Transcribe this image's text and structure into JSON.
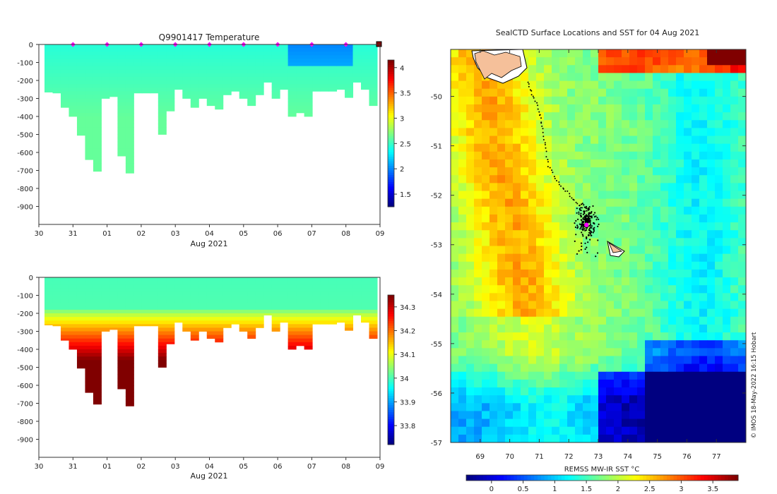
{
  "chart_data": [
    {
      "type": "heatmap",
      "title": "Q9901417  Temperature",
      "xlabel": "Aug 2021",
      "ylabel": "",
      "x_ticks": [
        "30",
        "31",
        "01",
        "02",
        "03",
        "04",
        "05",
        "06",
        "07",
        "08",
        "09"
      ],
      "y_ticks": [
        "0",
        "-100",
        "-200",
        "-300",
        "-400",
        "-500",
        "-600",
        "-700",
        "-800",
        "-900"
      ],
      "ylim": [
        -1000,
        0
      ],
      "colorbar_ticks": [
        "1.5",
        "2",
        "2.5",
        "3",
        "3.5",
        "4"
      ],
      "colorbar_range": [
        1.25,
        4.15
      ],
      "profile_markers_days": [
        1,
        2,
        3,
        4,
        5,
        6,
        7,
        8,
        9,
        10
      ],
      "profile_max_depths": [
        265,
        270,
        350,
        400,
        505,
        640,
        705,
        300,
        290,
        620,
        715,
        270,
        270,
        270,
        500,
        370,
        250,
        300,
        350,
        300,
        340,
        360,
        280,
        260,
        300,
        340,
        280,
        210,
        300,
        250,
        400,
        380,
        400,
        260,
        260,
        260,
        250,
        295,
        210,
        250,
        340
      ],
      "surface_value": 2.45,
      "deep_value": 2.7
    },
    {
      "type": "heatmap",
      "title": "",
      "xlabel": "Aug 2021",
      "ylabel": "",
      "x_ticks": [
        "30",
        "31",
        "01",
        "02",
        "03",
        "04",
        "05",
        "06",
        "07",
        "08",
        "09"
      ],
      "y_ticks": [
        "0",
        "-100",
        "-200",
        "-300",
        "-400",
        "-500",
        "-600",
        "-700",
        "-800",
        "-900"
      ],
      "ylim": [
        -1000,
        0
      ],
      "colorbar_ticks": [
        "33.8",
        "33.9",
        "34",
        "34.1",
        "34.2",
        "34.3"
      ],
      "colorbar_range": [
        33.72,
        34.35
      ],
      "profile_max_depths": [
        265,
        270,
        350,
        400,
        505,
        640,
        705,
        300,
        290,
        620,
        715,
        270,
        270,
        270,
        500,
        370,
        250,
        300,
        350,
        300,
        340,
        360,
        280,
        260,
        300,
        340,
        280,
        210,
        300,
        250,
        400,
        380,
        400,
        260,
        260,
        260,
        250,
        295,
        210,
        250,
        340
      ],
      "surface_value": 34.0,
      "deep_value": 34.35
    },
    {
      "type": "heatmap",
      "title": "SealCTD Surface Locations and SST for 04 Aug 2021",
      "xlabel": "",
      "x_ticks": [
        "69",
        "70",
        "71",
        "72",
        "73",
        "74",
        "75",
        "76",
        "77"
      ],
      "y_ticks": [
        "-50",
        "-51",
        "-52",
        "-53",
        "-54",
        "-55",
        "-56",
        "-57"
      ],
      "xlim": [
        68,
        78
      ],
      "ylim": [
        -57,
        -49.05
      ],
      "colorbar_label": "REMSS MW-IR SST °C",
      "colorbar_ticks": [
        "0",
        "0.5",
        "1",
        "1.5",
        "2",
        "2.5",
        "3",
        "3.5"
      ],
      "colorbar_range": [
        -0.4,
        3.9
      ],
      "seal_track": [
        [
          70.6,
          -49.7
        ],
        [
          70.8,
          -50.0
        ],
        [
          71.0,
          -50.3
        ],
        [
          71.1,
          -50.6
        ],
        [
          71.2,
          -51.0
        ],
        [
          71.3,
          -51.4
        ],
        [
          71.6,
          -51.7
        ],
        [
          71.9,
          -51.9
        ],
        [
          72.2,
          -52.1
        ],
        [
          72.5,
          -52.3
        ]
      ],
      "cluster_center": [
        72.6,
        -52.5
      ],
      "last_position": [
        72.6,
        -52.6
      ]
    }
  ],
  "credit_text": "© IMOS 18-May-2022 16:15 Hobart",
  "colors": {
    "profile_marker": "#ff00ff",
    "land": "#f5c09a",
    "seal_track": "#000000"
  }
}
